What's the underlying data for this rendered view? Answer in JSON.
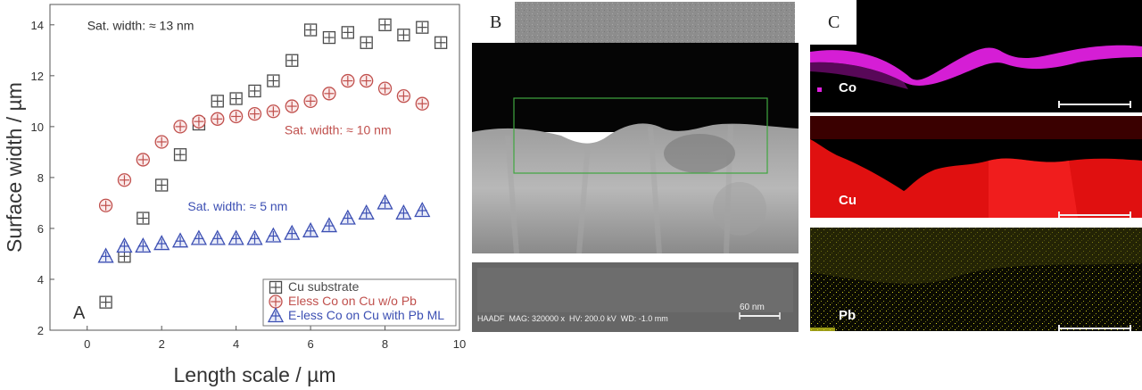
{
  "chart_data": {
    "type": "scatter",
    "panel_letter": "A",
    "xlabel": "Length scale / µm",
    "ylabel": "Surface width / µm",
    "xlim": [
      -1,
      10
    ],
    "ylim": [
      2,
      14.8
    ],
    "xticks": [
      0,
      2,
      4,
      6,
      8,
      10
    ],
    "yticks": [
      2,
      4,
      6,
      8,
      10,
      12,
      14
    ],
    "grid": false,
    "legend_position": "bottom-right",
    "series": [
      {
        "name": "Cu substrate",
        "marker": "boxplus",
        "color": "#4a4a4a",
        "x": [
          0.5,
          1.0,
          1.5,
          2.0,
          2.5,
          3.0,
          3.5,
          4.0,
          4.5,
          5.0,
          5.5,
          6.0,
          6.5,
          7.0,
          7.5,
          8.0,
          8.5,
          9.0,
          9.5
        ],
        "y": [
          3.1,
          4.9,
          6.4,
          7.7,
          8.9,
          10.1,
          11.0,
          11.1,
          11.4,
          11.8,
          12.6,
          13.8,
          13.5,
          13.7,
          13.3,
          14.0,
          13.6,
          13.9,
          13.3
        ]
      },
      {
        "name": "Eless Co on Cu w/o Pb",
        "marker": "circleplus",
        "color": "#c0504d",
        "x": [
          0.5,
          1.0,
          1.5,
          2.0,
          2.5,
          3.0,
          3.5,
          4.0,
          4.5,
          5.0,
          5.5,
          6.0,
          6.5,
          7.0,
          7.5,
          8.0,
          8.5,
          9.0
        ],
        "y": [
          6.9,
          7.9,
          8.7,
          9.4,
          10.0,
          10.2,
          10.3,
          10.4,
          10.5,
          10.6,
          10.8,
          11.0,
          11.3,
          11.8,
          11.8,
          11.5,
          11.2,
          10.9
        ]
      },
      {
        "name": "E-less Co on Cu with Pb ML",
        "marker": "triangleplus",
        "color": "#3c4fb3",
        "x": [
          0.5,
          1.0,
          1.5,
          2.0,
          2.5,
          3.0,
          3.5,
          4.0,
          4.5,
          5.0,
          5.5,
          6.0,
          6.5,
          7.0,
          7.5,
          8.0,
          8.5,
          9.0
        ],
        "y": [
          4.9,
          5.3,
          5.3,
          5.4,
          5.5,
          5.6,
          5.6,
          5.6,
          5.6,
          5.7,
          5.8,
          5.9,
          6.1,
          6.4,
          6.6,
          7.0,
          6.6,
          6.7
        ]
      }
    ],
    "annotations": [
      {
        "text": "Sat. width: ≈ 13 nm",
        "color": "#333333",
        "x": 0,
        "y": 13.8
      },
      {
        "text": "Sat. width: ≈ 10 nm",
        "color": "#c0504d",
        "x": 5.3,
        "y": 9.7
      },
      {
        "text": "Sat. width:  ≈ 5 nm",
        "color": "#3c4fb3",
        "x": 2.7,
        "y": 6.7
      }
    ]
  },
  "panel_b": {
    "letter": "B",
    "info_bar": "HAADF  MAG: 320000 x  HV: 200.0 kV  WD: -1.0 mm",
    "scale_label": "60 nm"
  },
  "panel_c": {
    "letter": "C",
    "maps": [
      {
        "element": "Co",
        "color": "#e020e0"
      },
      {
        "element": "Cu",
        "color": "#e01010"
      },
      {
        "element": "Pb",
        "color": "#d8d820"
      }
    ]
  }
}
